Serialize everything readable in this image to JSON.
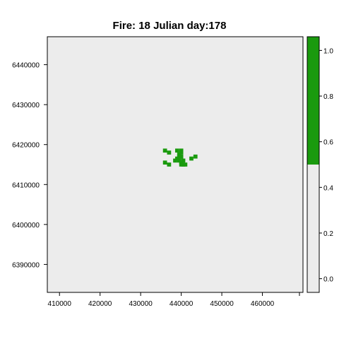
{
  "chart_data": {
    "type": "heatmap",
    "title": "Fire: 18    Julian day:178",
    "xlabel": "",
    "ylabel": "",
    "x_ticks": [
      410000,
      420000,
      430000,
      440000,
      450000,
      460000
    ],
    "y_ticks": [
      6390000,
      6400000,
      6410000,
      6420000,
      6430000,
      6440000
    ],
    "xlim": [
      407000,
      470000
    ],
    "ylim": [
      6383000,
      6447000
    ],
    "cell_size": 1000,
    "background_value": 0,
    "burned_value": 1,
    "burned_cells": [
      [
        436000,
        6418500
      ],
      [
        437000,
        6418000
      ],
      [
        439000,
        6418500
      ],
      [
        440000,
        6418500
      ],
      [
        440000,
        6418000
      ],
      [
        439500,
        6417500
      ],
      [
        439500,
        6417000
      ],
      [
        440000,
        6417000
      ],
      [
        439000,
        6416500
      ],
      [
        438500,
        6416000
      ],
      [
        439500,
        6416000
      ],
      [
        440500,
        6416000
      ],
      [
        443500,
        6417000
      ],
      [
        442500,
        6416500
      ],
      [
        436000,
        6415500
      ],
      [
        437000,
        6415000
      ],
      [
        440000,
        6415500
      ],
      [
        440000,
        6415000
      ],
      [
        440500,
        6415000
      ],
      [
        441000,
        6415000
      ]
    ],
    "colorbar": {
      "ticks": [
        0.0,
        0.2,
        0.4,
        0.6,
        0.8,
        1.0
      ],
      "range": [
        -0.06,
        1.06
      ],
      "segments": [
        {
          "from": -0.06,
          "to": 0.5,
          "color": "#ececec"
        },
        {
          "from": 0.5,
          "to": 1.06,
          "color": "#1a9a0e"
        }
      ]
    },
    "colors": {
      "background": "#ececec",
      "burned": "#1a9a0e"
    },
    "grid": false,
    "legend": "right (colorbar)"
  }
}
